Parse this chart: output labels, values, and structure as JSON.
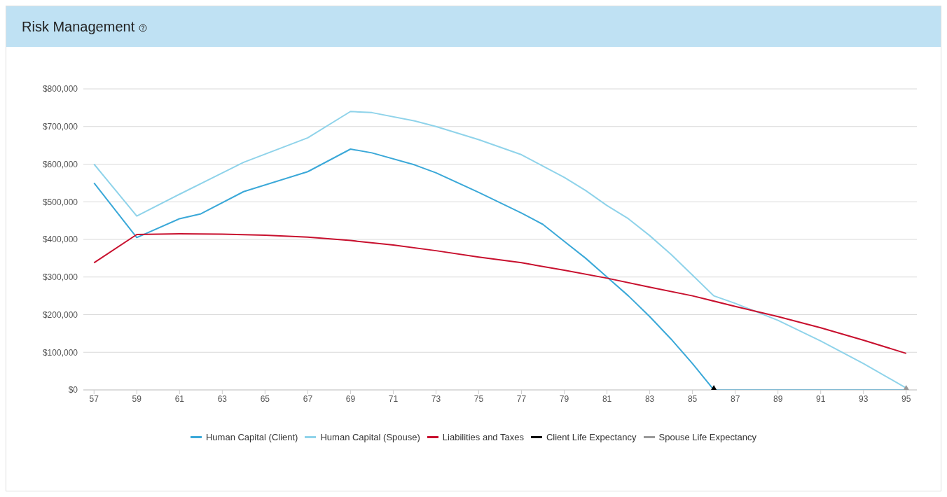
{
  "chart_data": {
    "type": "line",
    "title": "Risk Management",
    "grid": "y",
    "legend": "bottom",
    "marker": "none",
    "line_style": "solid",
    "xlim": [
      56.5,
      95.5
    ],
    "xticks": [
      57,
      59,
      61,
      63,
      65,
      67,
      69,
      71,
      73,
      75,
      77,
      79,
      81,
      83,
      85,
      87,
      89,
      91,
      93,
      95
    ],
    "ylim": [
      0,
      800000
    ],
    "yticks": [
      {
        "value": 0,
        "label": "$0"
      },
      {
        "value": 100000,
        "label": "$100,000"
      },
      {
        "value": 200000,
        "label": "$200,000"
      },
      {
        "value": 300000,
        "label": "$300,000"
      },
      {
        "value": 400000,
        "label": "$400,000"
      },
      {
        "value": 500000,
        "label": "$500,000"
      },
      {
        "value": 600000,
        "label": "$600,000"
      },
      {
        "value": 700000,
        "label": "$700,000"
      },
      {
        "value": 800000,
        "label": "$800,000"
      }
    ],
    "series": [
      {
        "name": "Human Capital (Client)",
        "color": "#3aa8d8",
        "x": [
          57,
          59,
          61,
          62,
          64,
          67,
          69,
          70,
          72,
          73,
          75,
          77,
          78,
          79,
          80,
          81,
          82,
          83,
          84,
          85,
          86,
          87,
          89,
          91,
          93,
          95
        ],
        "values": [
          550000,
          405000,
          455000,
          468000,
          527000,
          580000,
          640000,
          630000,
          598000,
          577000,
          525000,
          470000,
          440000,
          395000,
          350000,
          300000,
          250000,
          195000,
          135000,
          70000,
          0,
          0,
          0,
          0,
          0,
          0
        ]
      },
      {
        "name": "Human Capital (Spouse)",
        "color": "#8fd3ea",
        "x": [
          57,
          59,
          61,
          64,
          67,
          69,
          70,
          72,
          73,
          75,
          77,
          79,
          80,
          81,
          82,
          83,
          84,
          85,
          86,
          87,
          89,
          91,
          93,
          95
        ],
        "values": [
          600000,
          462000,
          520000,
          605000,
          670000,
          740000,
          737000,
          715000,
          700000,
          665000,
          625000,
          565000,
          530000,
          490000,
          455000,
          410000,
          360000,
          305000,
          250000,
          230000,
          185000,
          130000,
          70000,
          5000
        ]
      },
      {
        "name": "Liabilities and Taxes",
        "color": "#c8102e",
        "x": [
          57,
          59,
          61,
          63,
          65,
          67,
          69,
          71,
          73,
          75,
          77,
          79,
          81,
          83,
          85,
          87,
          89,
          91,
          93,
          95
        ],
        "values": [
          338000,
          413000,
          415000,
          414000,
          411000,
          406000,
          397000,
          385000,
          370000,
          353000,
          338000,
          318000,
          297000,
          273000,
          250000,
          222000,
          195000,
          165000,
          132000,
          97000
        ]
      },
      {
        "name": "Client Life Expectancy",
        "type": "scatter",
        "marker": "triangle",
        "color": "#000000",
        "x": [
          86
        ],
        "values": [
          0
        ]
      },
      {
        "name": "Spouse Life Expectancy",
        "type": "scatter",
        "marker": "triangle",
        "color": "#999999",
        "x": [
          95
        ],
        "values": [
          0
        ]
      }
    ]
  }
}
